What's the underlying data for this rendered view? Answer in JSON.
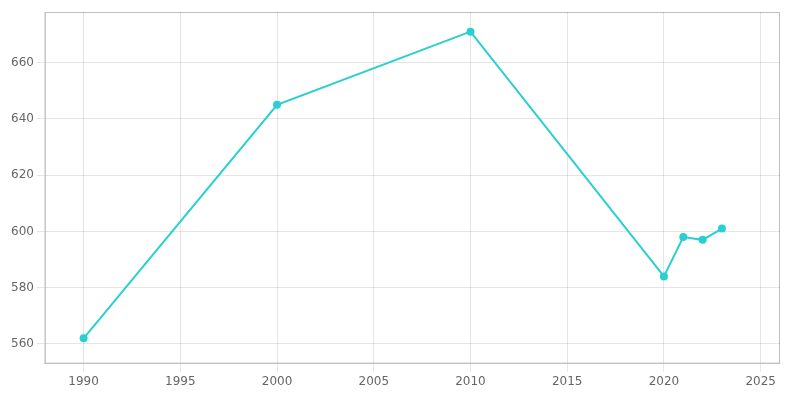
{
  "chart_data": {
    "type": "line",
    "x": [
      1990,
      2000,
      2010,
      2020,
      2021,
      2022,
      2023
    ],
    "values": [
      562,
      645,
      671,
      584,
      598,
      597,
      601
    ],
    "color": "#2acfcf",
    "marker": "circle",
    "xlim": [
      1988,
      2026
    ],
    "ylim": [
      553,
      678
    ],
    "xticks": [
      1990,
      1995,
      2000,
      2005,
      2010,
      2015,
      2020,
      2025
    ],
    "yticks": [
      560,
      580,
      600,
      620,
      640,
      660
    ],
    "grid": true
  }
}
